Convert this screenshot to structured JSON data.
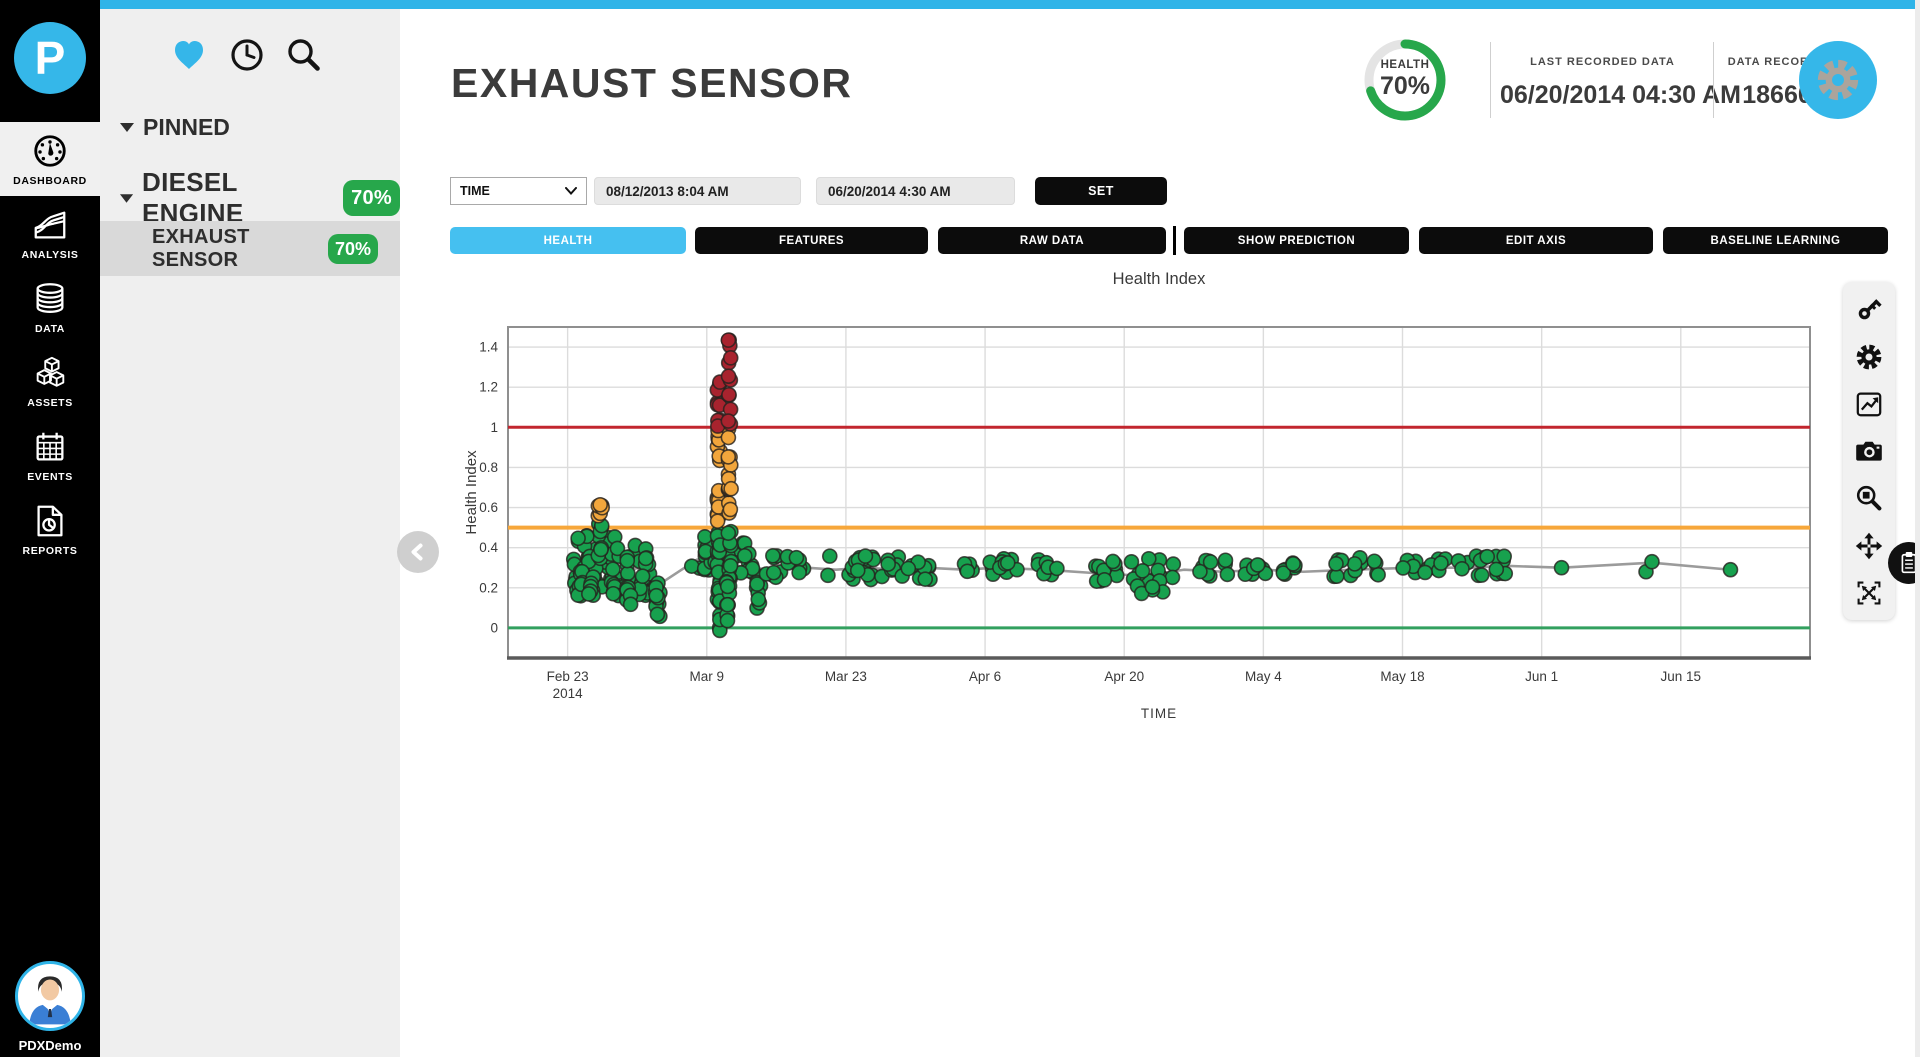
{
  "colors": {
    "accent": "#35b7e9",
    "strip": "#2fb4e8",
    "green_badge": "#27a74b",
    "tab_active": "#45c0f0",
    "sidebar_bg": "#efefef",
    "selected_row": "#d9d9d9",
    "rail_bg": "#000000"
  },
  "left_rail": {
    "logo_letter": "P",
    "items": [
      {
        "label": "DASHBOARD",
        "active": true
      },
      {
        "label": "ANALYSIS",
        "active": false
      },
      {
        "label": "DATA",
        "active": false
      },
      {
        "label": "ASSETS",
        "active": false
      },
      {
        "label": "EVENTS",
        "active": false
      },
      {
        "label": "REPORTS",
        "active": false
      }
    ],
    "user_name": "PDXDemo"
  },
  "sidebar": {
    "pinned_label": "PINNED",
    "group_label": "DIESEL ENGINE",
    "group_badge": "70%",
    "item_label": "EXHAUST SENSOR",
    "item_badge": "70%"
  },
  "header": {
    "title": "EXHAUST SENSOR",
    "health_label": "HEALTH",
    "health_value": "70%",
    "health_pct": 70,
    "last_recorded_label": "LAST RECORDED DATA",
    "last_recorded_value": "06/20/2014 04:30 AM",
    "data_records_label": "DATA RECORDS",
    "data_records_value": "18660"
  },
  "filters": {
    "dimension": "TIME",
    "from": "08/12/2013 8:04 AM",
    "to": "06/20/2014 4:30 AM",
    "set_label": "SET"
  },
  "tabs": {
    "health": "HEALTH",
    "features": "FEATURES",
    "raw_data": "RAW DATA",
    "show_prediction": "SHOW PREDICTION",
    "edit_axis": "EDIT AXIS",
    "baseline_learning": "BASELINE LEARNING"
  },
  "chart_data": {
    "type": "scatter",
    "title": "Health Index",
    "xlabel": "TIME",
    "ylabel": "Health Index",
    "grid": true,
    "legend": false,
    "x_domain_days": [
      -6,
      125
    ],
    "y_domain": [
      -0.15,
      1.5
    ],
    "x_ticks": [
      {
        "label": "Feb 23",
        "sublabel": "2014",
        "day": 0
      },
      {
        "label": "Mar 9",
        "day": 14
      },
      {
        "label": "Mar 23",
        "day": 28
      },
      {
        "label": "Apr 6",
        "day": 42
      },
      {
        "label": "Apr 20",
        "day": 56
      },
      {
        "label": "May 4",
        "day": 70
      },
      {
        "label": "May 18",
        "day": 84
      },
      {
        "label": "Jun 1",
        "day": 98
      },
      {
        "label": "Jun 15",
        "day": 112
      }
    ],
    "y_ticks": [
      {
        "label": "0",
        "value": 0
      },
      {
        "label": "0.2",
        "value": 0.2
      },
      {
        "label": "0.4",
        "value": 0.4
      },
      {
        "label": "0.6",
        "value": 0.6
      },
      {
        "label": "0.8",
        "value": 0.8
      },
      {
        "label": "1",
        "value": 1
      },
      {
        "label": "1.2",
        "value": 1.2
      },
      {
        "label": "1.4",
        "value": 1.4
      }
    ],
    "thresholds": [
      {
        "name": "alarm",
        "value": 1,
        "color": "#c2262e",
        "width": 3
      },
      {
        "name": "warning",
        "value": 0.5,
        "color": "#f7a73a",
        "width": 4
      },
      {
        "name": "baseline",
        "value": 0,
        "color": "#33a05f",
        "width": 3
      }
    ],
    "point_colors": {
      "g": "#17a14e",
      "o": "#f2a63c",
      "r": "#a8232e"
    },
    "point_stroke": "#26221e",
    "trend_color": "#9b9b9b",
    "clusters": [
      {
        "d0": 0.6,
        "d1": 5.2,
        "n": 55,
        "y0": 0.18,
        "y1": 0.46,
        "c": "g"
      },
      {
        "d0": 1.0,
        "d1": 1.7,
        "n": 8,
        "y0": 0.15,
        "y1": 0.3,
        "c": "g"
      },
      {
        "d0": 2.0,
        "d1": 2.6,
        "n": 6,
        "y0": 0.16,
        "y1": 0.26,
        "c": "g"
      },
      {
        "d0": 2.9,
        "d1": 3.6,
        "n": 8,
        "y0": 0.35,
        "y1": 0.52,
        "c": "g"
      },
      {
        "d0": 3.0,
        "d1": 3.5,
        "n": 7,
        "y0": 0.5,
        "y1": 0.62,
        "c": "o"
      },
      {
        "d0": 4.4,
        "d1": 8.6,
        "n": 40,
        "y0": 0.16,
        "y1": 0.44,
        "c": "g"
      },
      {
        "d0": 5.9,
        "d1": 6.4,
        "n": 8,
        "y0": 0.1,
        "y1": 0.24,
        "c": "g"
      },
      {
        "d0": 8.8,
        "d1": 9.3,
        "n": 12,
        "y0": 0.04,
        "y1": 0.3,
        "c": "g"
      },
      {
        "d0": 12.4,
        "d1": 14.6,
        "n": 16,
        "y0": 0.28,
        "y1": 0.46,
        "c": "g"
      },
      {
        "d0": 14.6,
        "d1": 18.8,
        "n": 26,
        "y0": 0.25,
        "y1": 0.44,
        "c": "g"
      },
      {
        "d0": 19.0,
        "d1": 19.5,
        "n": 8,
        "y0": 0.07,
        "y1": 0.23,
        "c": "g"
      },
      {
        "d0": 15.05,
        "d1": 15.35,
        "n": 26,
        "y0": -0.02,
        "y1": 0.5,
        "c": "g"
      },
      {
        "d0": 15.05,
        "d1": 15.35,
        "n": 22,
        "y0": 0.5,
        "y1": 1.0,
        "c": "o"
      },
      {
        "d0": 15.05,
        "d1": 15.35,
        "n": 10,
        "y0": 0.98,
        "y1": 1.25,
        "c": "r"
      },
      {
        "d0": 16.15,
        "d1": 16.45,
        "n": 10,
        "y0": 0.22,
        "y1": 0.5,
        "c": "g"
      },
      {
        "d0": 16.15,
        "d1": 16.45,
        "n": 15,
        "y0": 0.55,
        "y1": 1.02,
        "c": "o"
      },
      {
        "d0": 16.15,
        "d1": 16.45,
        "n": 13,
        "y0": 1.0,
        "y1": 1.45,
        "c": "r"
      },
      {
        "d0": 15.9,
        "d1": 16.3,
        "n": 12,
        "y0": 0.02,
        "y1": 0.24,
        "c": "g"
      },
      {
        "d0": 20,
        "d1": 24,
        "n": 16,
        "y0": 0.24,
        "y1": 0.37,
        "c": "g"
      },
      {
        "d0": 26,
        "d1": 31,
        "n": 20,
        "y0": 0.24,
        "y1": 0.37,
        "c": "g"
      },
      {
        "d0": 31.5,
        "d1": 36.5,
        "n": 18,
        "y0": 0.23,
        "y1": 0.36,
        "c": "g"
      },
      {
        "d0": 39.5,
        "d1": 41,
        "n": 6,
        "y0": 0.26,
        "y1": 0.34,
        "c": "g"
      },
      {
        "d0": 42.5,
        "d1": 45.5,
        "n": 12,
        "y0": 0.25,
        "y1": 0.35,
        "c": "g"
      },
      {
        "d0": 47,
        "d1": 49.5,
        "n": 8,
        "y0": 0.26,
        "y1": 0.34,
        "c": "g"
      },
      {
        "d0": 53,
        "d1": 61,
        "n": 22,
        "y0": 0.23,
        "y1": 0.35,
        "c": "g"
      },
      {
        "d0": 56,
        "d1": 60,
        "n": 6,
        "y0": 0.17,
        "y1": 0.24,
        "c": "g"
      },
      {
        "d0": 63,
        "d1": 66.5,
        "n": 10,
        "y0": 0.25,
        "y1": 0.34,
        "c": "g"
      },
      {
        "d0": 68,
        "d1": 70.5,
        "n": 8,
        "y0": 0.26,
        "y1": 0.33,
        "c": "g"
      },
      {
        "d0": 72,
        "d1": 75,
        "n": 8,
        "y0": 0.25,
        "y1": 0.33,
        "c": "g"
      },
      {
        "d0": 77,
        "d1": 82.5,
        "n": 14,
        "y0": 0.25,
        "y1": 0.35,
        "c": "g"
      },
      {
        "d0": 84,
        "d1": 88.5,
        "n": 14,
        "y0": 0.26,
        "y1": 0.35,
        "c": "g"
      },
      {
        "d0": 89.5,
        "d1": 94.5,
        "n": 16,
        "y0": 0.26,
        "y1": 0.36,
        "c": "g"
      },
      {
        "d0": 100,
        "d1": 100,
        "n": 1,
        "y0": 0.3,
        "y1": 0.3,
        "c": "g"
      },
      {
        "d0": 108.5,
        "d1": 108.5,
        "n": 1,
        "y0": 0.28,
        "y1": 0.28,
        "c": "g"
      },
      {
        "d0": 109.1,
        "d1": 109.1,
        "n": 1,
        "y0": 0.33,
        "y1": 0.33,
        "c": "g"
      },
      {
        "d0": 117,
        "d1": 117,
        "n": 1,
        "y0": 0.29,
        "y1": 0.29,
        "c": "g"
      }
    ],
    "trend": [
      [
        0.8,
        0.3
      ],
      [
        2,
        0.31
      ],
      [
        3.3,
        0.33
      ],
      [
        4.5,
        0.3
      ],
      [
        6,
        0.27
      ],
      [
        7,
        0.3
      ],
      [
        9,
        0.21
      ],
      [
        13,
        0.34
      ],
      [
        15.2,
        0.36
      ],
      [
        16.3,
        0.32
      ],
      [
        18,
        0.3
      ],
      [
        21,
        0.29
      ],
      [
        24,
        0.3
      ],
      [
        27,
        0.29
      ],
      [
        30,
        0.3
      ],
      [
        33,
        0.29
      ],
      [
        36,
        0.3
      ],
      [
        40,
        0.29
      ],
      [
        43,
        0.3
      ],
      [
        48,
        0.29
      ],
      [
        54,
        0.27
      ],
      [
        58,
        0.26
      ],
      [
        62,
        0.29
      ],
      [
        66,
        0.28
      ],
      [
        70,
        0.29
      ],
      [
        74,
        0.28
      ],
      [
        79,
        0.29
      ],
      [
        85,
        0.3
      ],
      [
        91,
        0.3
      ],
      [
        94,
        0.31
      ],
      [
        100,
        0.3
      ],
      [
        109.1,
        0.325
      ],
      [
        117,
        0.29
      ]
    ]
  }
}
